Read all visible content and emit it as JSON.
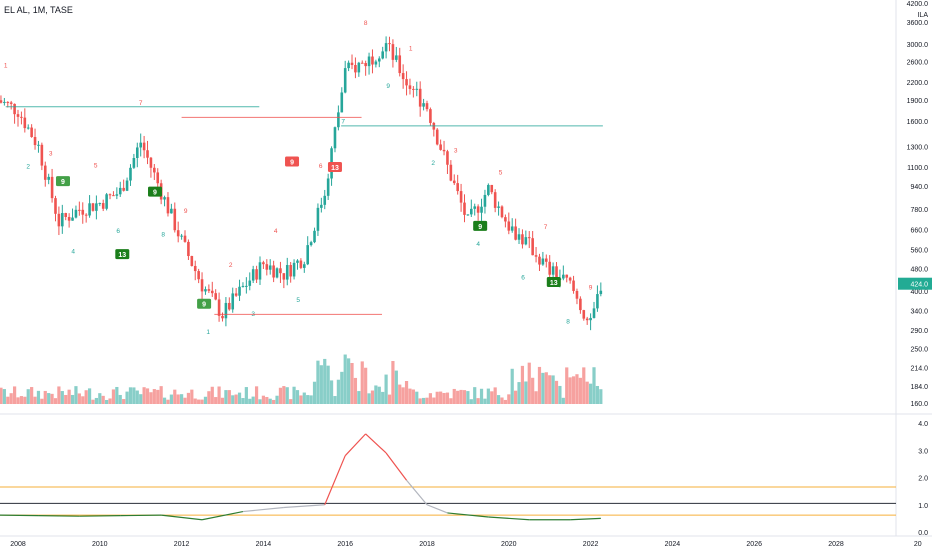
{
  "header": {
    "symbol_title": "EL AL, 1M, TASE"
  },
  "chart_data": [
    {
      "type": "candlestick",
      "title": "EL AL, 1M, TASE",
      "scale": "log",
      "currency": "ILA",
      "price_axis_ticks": [
        "4200.0",
        "3600.0",
        "3000.0",
        "2600.0",
        "2200.0",
        "1900.0",
        "1600.0",
        "1300.0",
        "1100.0",
        "940.0",
        "780.0",
        "660.0",
        "560.0",
        "480.0",
        "400.0",
        "340.0",
        "290.0",
        "250.0",
        "214.0",
        "184.0",
        "160.0"
      ],
      "last_price_label": "424.0",
      "time_axis_labels": [
        "2008",
        "2010",
        "2012",
        "2014",
        "2016",
        "2018",
        "2020",
        "2022",
        "2024",
        "2026",
        "2028",
        "20"
      ],
      "x": [
        "2007-07",
        "2008-01",
        "2008-07",
        "2009-01",
        "2009-07",
        "2010-01",
        "2010-07",
        "2011-01",
        "2011-07",
        "2012-01",
        "2012-07",
        "2013-01",
        "2013-07",
        "2014-01",
        "2014-07",
        "2015-01",
        "2015-07",
        "2016-01",
        "2016-07",
        "2017-01",
        "2017-07",
        "2018-01",
        "2018-07",
        "2019-01",
        "2019-07",
        "2020-01",
        "2020-07",
        "2021-01",
        "2021-07",
        "2022-01",
        "2022-04"
      ],
      "close": [
        1900,
        1750,
        1300,
        700,
        780,
        820,
        900,
        1350,
        900,
        600,
        420,
        330,
        410,
        500,
        460,
        530,
        900,
        2400,
        2600,
        3000,
        2200,
        1800,
        1100,
        700,
        920,
        680,
        580,
        470,
        420,
        300,
        424
      ],
      "td_sequential_labels": [
        "1",
        "2",
        "3",
        "4",
        "5",
        "6",
        "7",
        "8",
        "9",
        "12",
        "13"
      ],
      "highlighted_count_labels": [
        "9",
        "13"
      ]
    },
    {
      "type": "line",
      "ylim_labels": [
        "4.0",
        "3.0",
        "2.0",
        "1.0",
        "0.0"
      ],
      "series": [
        {
          "x": [
            "2007-07",
            "2008-07",
            "2009-07",
            "2010-07",
            "2011-07",
            "2012-07",
            "2013-07",
            "2014-07",
            "2015-07",
            "2016-01",
            "2016-07",
            "2017-01",
            "2017-07",
            "2018-01",
            "2018-07",
            "2019-07",
            "2020-07",
            "2021-07",
            "2022-04"
          ],
          "values": [
            0.62,
            0.6,
            0.58,
            0.6,
            0.62,
            0.45,
            0.75,
            0.9,
            1.0,
            2.8,
            3.6,
            2.9,
            1.9,
            1.0,
            0.7,
            0.55,
            0.45,
            0.45,
            0.5
          ]
        }
      ],
      "reference_levels": [
        1.65,
        1.05,
        0.62
      ]
    }
  ],
  "colors": {
    "up": "#26a69a",
    "down": "#ef5350",
    "neutral": "#b2b5be",
    "accent": "#22ab94"
  }
}
